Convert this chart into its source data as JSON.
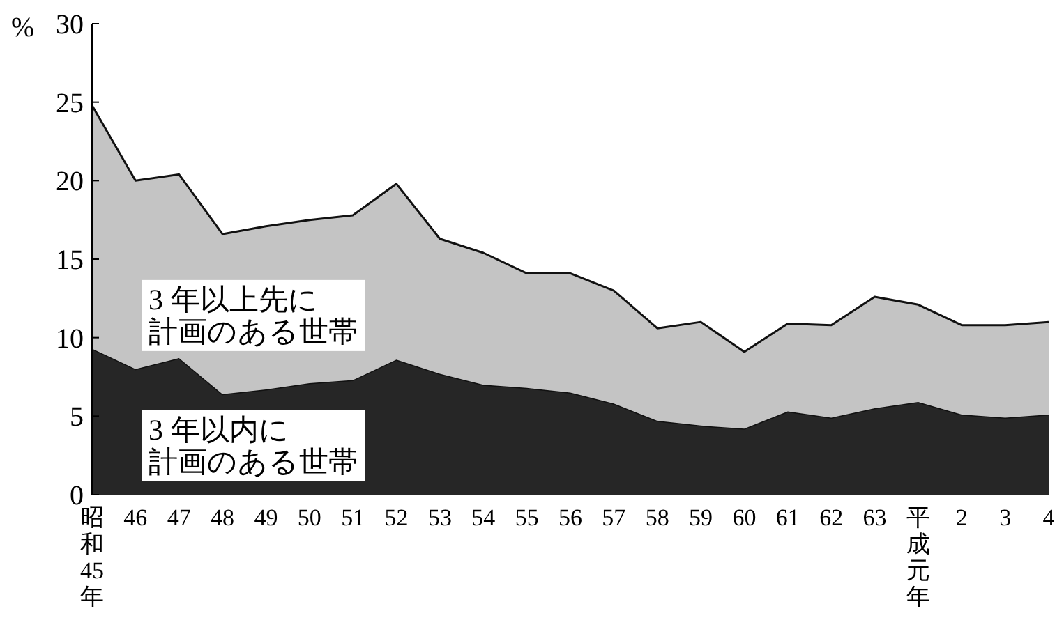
{
  "chart_data": {
    "type": "area",
    "stacked": true,
    "ylabel": "%",
    "categories": [
      "昭和45年",
      "46",
      "47",
      "48",
      "49",
      "50",
      "51",
      "52",
      "53",
      "54",
      "55",
      "56",
      "57",
      "58",
      "59",
      "60",
      "61",
      "62",
      "63",
      "平成元年",
      "2",
      "3",
      "4"
    ],
    "series": [
      {
        "name": "3 年以内に計画のある世帯",
        "color": "#262626",
        "values": [
          9.3,
          8.0,
          8.7,
          6.4,
          6.7,
          7.1,
          7.3,
          8.6,
          7.7,
          7.0,
          6.8,
          6.5,
          5.8,
          4.7,
          4.4,
          4.2,
          5.3,
          4.9,
          5.5,
          5.9,
          5.1,
          4.9,
          5.1
        ]
      },
      {
        "name": "3 年以上先に計画のある世帯",
        "color": "#c4c4c4",
        "values": [
          15.5,
          12.0,
          11.7,
          10.2,
          10.4,
          10.4,
          10.5,
          11.2,
          8.6,
          8.4,
          7.3,
          7.6,
          7.2,
          5.9,
          6.6,
          4.9,
          5.6,
          5.9,
          7.1,
          6.2,
          5.7,
          5.9,
          5.9
        ]
      }
    ],
    "ylim": [
      0,
      30
    ],
    "yticks": [
      0,
      5,
      10,
      15,
      20,
      25,
      30
    ],
    "grid": false
  }
}
